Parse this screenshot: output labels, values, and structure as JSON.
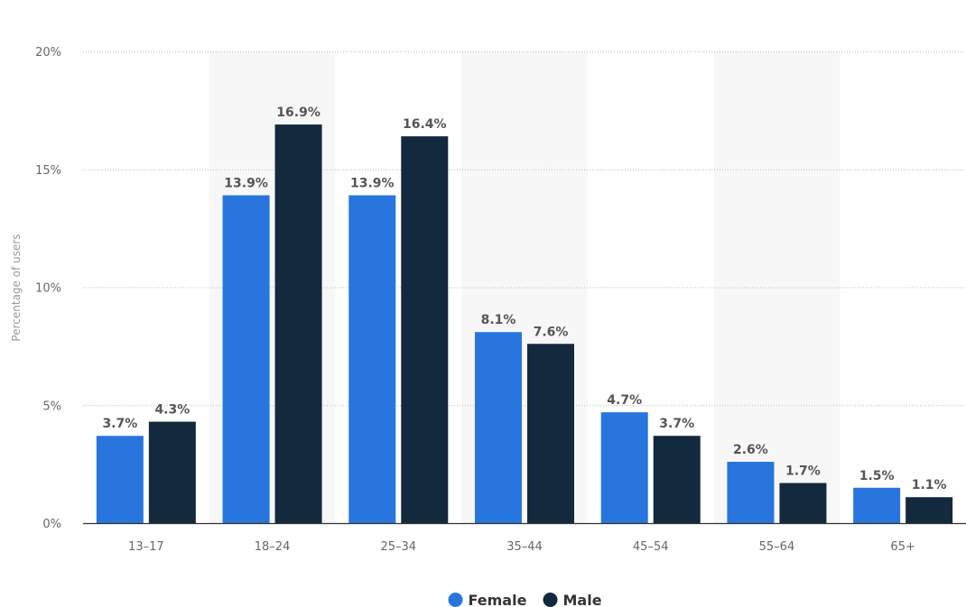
{
  "chart_data": {
    "type": "bar",
    "ylabel": "Percentage of users",
    "xlabel": "",
    "ylim": [
      0,
      20
    ],
    "yticks": [
      0,
      5,
      10,
      15,
      20
    ],
    "ytick_labels": [
      "0%",
      "5%",
      "10%",
      "15%",
      "20%"
    ],
    "categories": [
      "13–17",
      "18–24",
      "25–34",
      "35–44",
      "45–54",
      "55–64",
      "65+"
    ],
    "series": [
      {
        "name": "Female",
        "color": "#2876dd",
        "values": [
          3.7,
          13.9,
          13.9,
          8.1,
          4.7,
          2.6,
          1.5
        ],
        "labels": [
          "3.7%",
          "13.9%",
          "13.9%",
          "8.1%",
          "4.7%",
          "2.6%",
          "1.5%"
        ]
      },
      {
        "name": "Male",
        "color": "#12293e",
        "values": [
          4.3,
          16.9,
          16.4,
          7.6,
          3.7,
          1.7,
          1.1
        ],
        "labels": [
          "4.3%",
          "16.9%",
          "16.4%",
          "7.6%",
          "3.7%",
          "1.7%",
          "1.1%"
        ]
      }
    ],
    "grid": true,
    "legend": "bottom-center",
    "band_color": "#f7f7f7"
  }
}
